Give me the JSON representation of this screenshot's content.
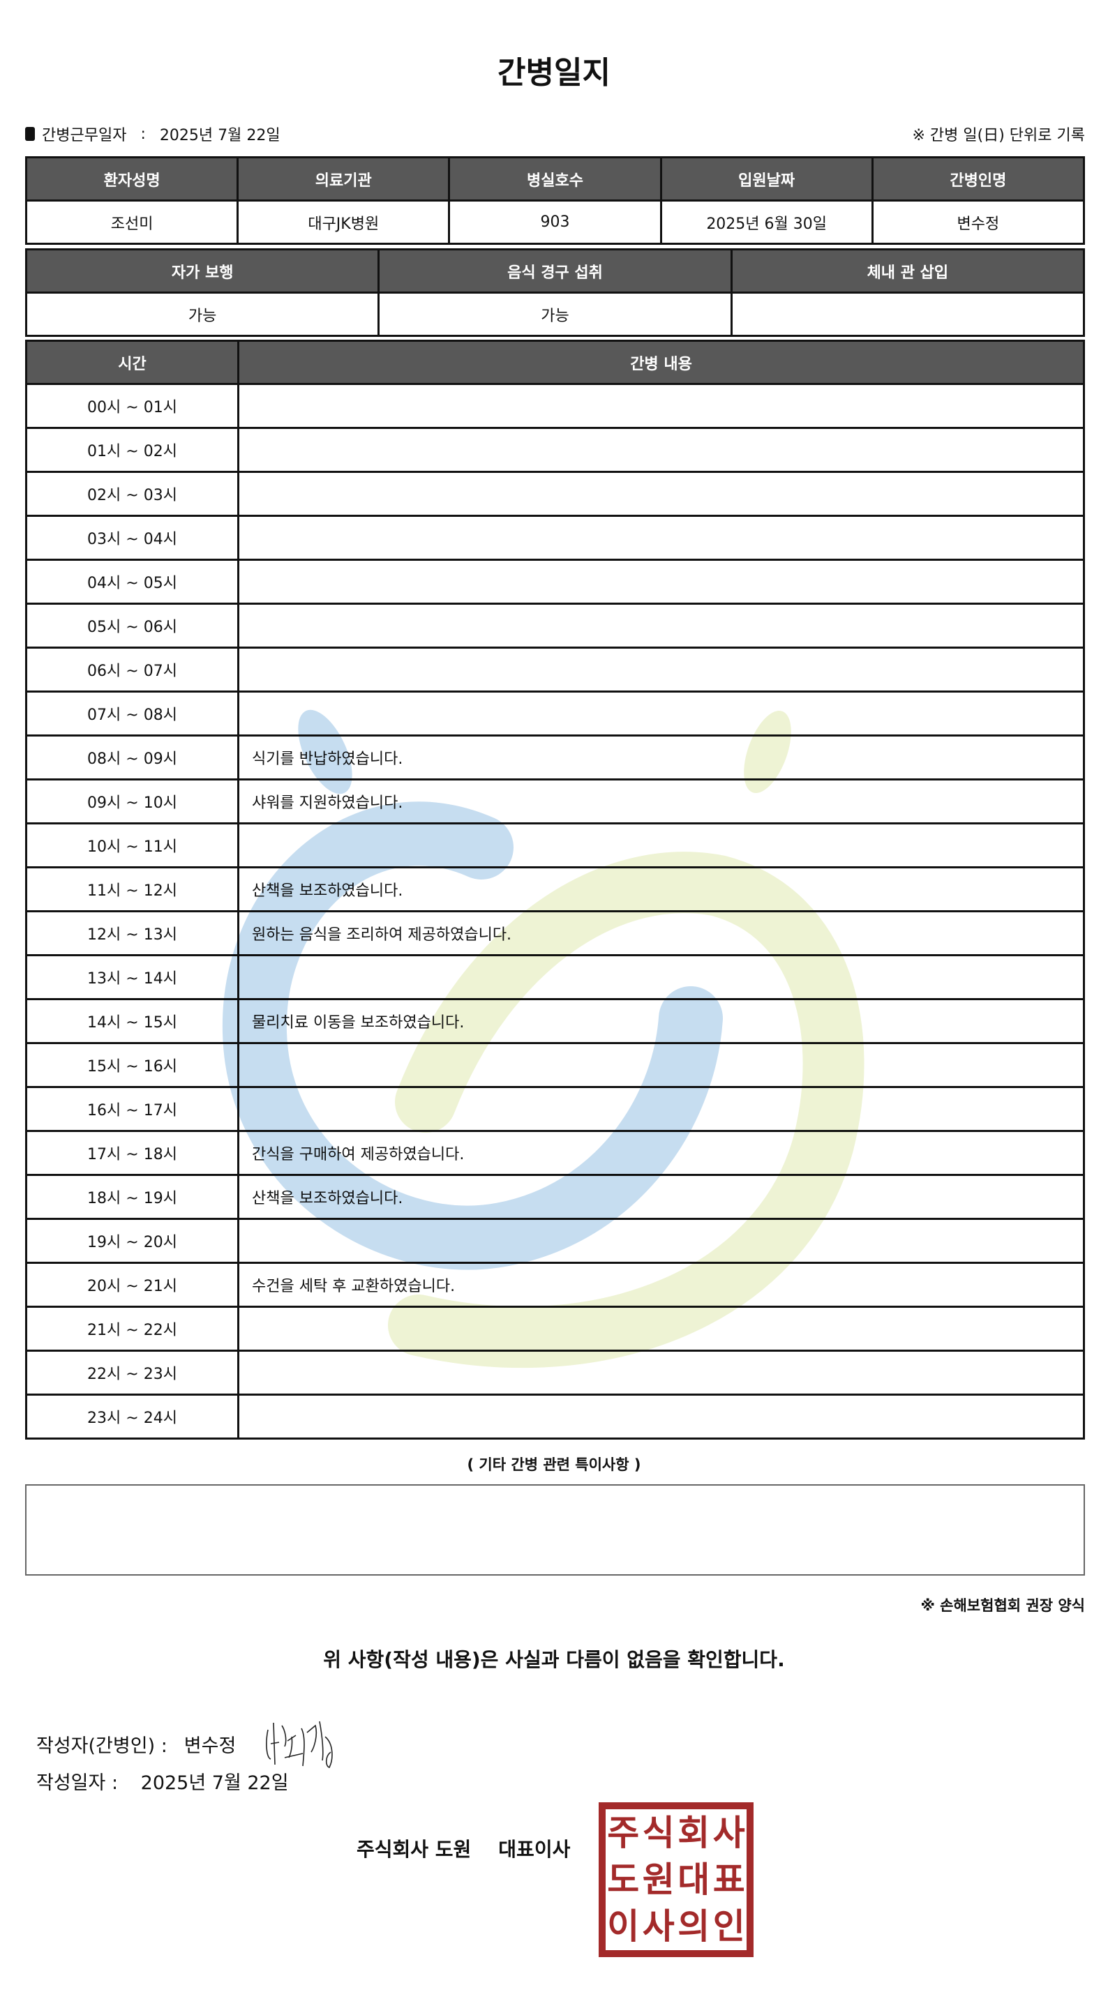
{
  "title": "간병일지",
  "info": {
    "work_date_label": "간병근무일자",
    "separator": ":",
    "work_date": "2025년 7월 22일",
    "note": "※ 간병 일(日) 단위로 기록"
  },
  "patient_table": {
    "headers": [
      "환자성명",
      "의료기관",
      "병실호수",
      "입원날짜",
      "간병인명"
    ],
    "values": [
      "조선미",
      "대구JK병원",
      "903",
      "2025년 6월 30일",
      "변수정"
    ]
  },
  "status_table": {
    "headers": [
      "자가 보행",
      "음식 경구 섭취",
      "체내 관 삽입"
    ],
    "values": [
      "가능",
      "가능",
      ""
    ]
  },
  "log_table": {
    "headers": [
      "시간",
      "간병 내용"
    ],
    "rows": [
      {
        "time": "00시 ~ 01시",
        "content": ""
      },
      {
        "time": "01시 ~ 02시",
        "content": ""
      },
      {
        "time": "02시 ~ 03시",
        "content": ""
      },
      {
        "time": "03시 ~ 04시",
        "content": ""
      },
      {
        "time": "04시 ~ 05시",
        "content": ""
      },
      {
        "time": "05시 ~ 06시",
        "content": ""
      },
      {
        "time": "06시 ~ 07시",
        "content": ""
      },
      {
        "time": "07시 ~ 08시",
        "content": ""
      },
      {
        "time": "08시 ~ 09시",
        "content": "식기를 반납하였습니다."
      },
      {
        "time": "09시 ~ 10시",
        "content": "샤워를 지원하였습니다."
      },
      {
        "time": "10시 ~ 11시",
        "content": ""
      },
      {
        "time": "11시 ~ 12시",
        "content": "산책을 보조하였습니다."
      },
      {
        "time": "12시 ~ 13시",
        "content": "원하는 음식을 조리하여 제공하였습니다."
      },
      {
        "time": "13시 ~ 14시",
        "content": ""
      },
      {
        "time": "14시 ~ 15시",
        "content": "물리치료 이동을 보조하였습니다."
      },
      {
        "time": "15시 ~ 16시",
        "content": ""
      },
      {
        "time": "16시 ~ 17시",
        "content": ""
      },
      {
        "time": "17시 ~ 18시",
        "content": "간식을 구매하여 제공하였습니다."
      },
      {
        "time": "18시 ~ 19시",
        "content": "산책을 보조하였습니다."
      },
      {
        "time": "19시 ~ 20시",
        "content": ""
      },
      {
        "time": "20시 ~ 21시",
        "content": "수건을 세탁 후 교환하였습니다."
      },
      {
        "time": "21시 ~ 22시",
        "content": ""
      },
      {
        "time": "22시 ~ 23시",
        "content": ""
      },
      {
        "time": "23시 ~ 24시",
        "content": ""
      }
    ]
  },
  "notes": {
    "title": "( 기타 간병 관련 특이사항 )",
    "value": ""
  },
  "source_note": "※ 손해보험협회 권장 양식",
  "confirmation": "위 사항(작성 내용)은 사실과 다름이 없음을 확인합니다.",
  "writer": {
    "label": "작성자(간병인) :",
    "name": "변수정"
  },
  "written_date": {
    "label": "작성일자 :",
    "value": "2025년 7월 22일"
  },
  "company": "주식회사 도원    대표이사",
  "stamp": {
    "text": [
      "주",
      "식",
      "회",
      "사",
      "도",
      "원",
      "대",
      "표",
      "이",
      "사",
      "의",
      "인"
    ],
    "color": "#a32a2a"
  },
  "colors": {
    "header_bg": "#585858",
    "watermark_blue": "#c6ddf0",
    "watermark_green": "#eef3d4"
  }
}
